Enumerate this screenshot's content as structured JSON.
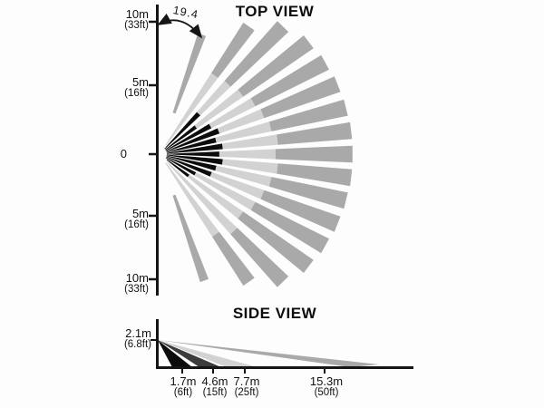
{
  "top_view": {
    "title": "TOP VIEW",
    "angle_label": "19.4",
    "axis_labels": [
      {
        "primary": "10m",
        "secondary": "(33ft)"
      },
      {
        "primary": "5m",
        "secondary": "(16ft)"
      },
      {
        "primary": "0",
        "secondary": ""
      },
      {
        "primary": "5m",
        "secondary": "(16ft)"
      },
      {
        "primary": "10m",
        "secondary": "(33ft)"
      }
    ],
    "beams": [
      {
        "angle": 70.5,
        "half_width": 1.9,
        "segments": [
          [
            48,
            140,
            "gray"
          ]
        ]
      },
      {
        "angle": 55,
        "half_width": 2.5,
        "segments": [
          [
            12,
            106,
            "light"
          ],
          [
            106,
            172,
            "gray"
          ]
        ]
      },
      {
        "angle": 46,
        "half_width": 2.5,
        "segments": [
          [
            8,
            62,
            "black"
          ],
          [
            62,
            108,
            "light"
          ],
          [
            108,
            196,
            "gray"
          ]
        ]
      },
      {
        "angle": 37,
        "half_width": 2.5,
        "segments": [
          [
            8,
            50,
            "black"
          ],
          [
            50,
            112,
            "light"
          ],
          [
            112,
            206,
            "gray"
          ]
        ]
      },
      {
        "angle": 29,
        "half_width": 2.5,
        "segments": [
          [
            8,
            64,
            "black"
          ],
          [
            64,
            118,
            "light"
          ],
          [
            118,
            209,
            "gray"
          ]
        ]
      },
      {
        "angle": 21.5,
        "half_width": 2.5,
        "segments": [
          [
            8,
            70,
            "black"
          ],
          [
            70,
            122,
            "light"
          ],
          [
            122,
            211,
            "gray"
          ]
        ]
      },
      {
        "angle": 14,
        "half_width": 2.5,
        "segments": [
          [
            8,
            64,
            "black"
          ],
          [
            64,
            126,
            "light"
          ],
          [
            126,
            212,
            "gray"
          ]
        ]
      },
      {
        "angle": 7,
        "half_width": 2.5,
        "segments": [
          [
            8,
            70,
            "black"
          ],
          [
            70,
            131,
            "light"
          ],
          [
            131,
            213,
            "gray"
          ]
        ]
      },
      {
        "angle": 0,
        "half_width": 2.5,
        "segments": [
          [
            8,
            66,
            "black"
          ],
          [
            66,
            128,
            "light"
          ],
          [
            128,
            213,
            "gray"
          ]
        ]
      },
      {
        "angle": -7,
        "half_width": 2.5,
        "segments": [
          [
            8,
            70,
            "black"
          ],
          [
            70,
            131,
            "light"
          ],
          [
            131,
            213,
            "gray"
          ]
        ]
      },
      {
        "angle": -14,
        "half_width": 2.5,
        "segments": [
          [
            8,
            64,
            "black"
          ],
          [
            64,
            126,
            "light"
          ],
          [
            126,
            212,
            "gray"
          ]
        ]
      },
      {
        "angle": -21.5,
        "half_width": 2.5,
        "segments": [
          [
            8,
            61,
            "black"
          ],
          [
            61,
            122,
            "light"
          ],
          [
            122,
            211,
            "gray"
          ]
        ]
      },
      {
        "angle": -29,
        "half_width": 2.5,
        "segments": [
          [
            8,
            45,
            "black"
          ],
          [
            45,
            118,
            "light"
          ],
          [
            118,
            209,
            "gray"
          ]
        ]
      },
      {
        "angle": -37,
        "half_width": 2.5,
        "segments": [
          [
            10,
            40,
            "black"
          ],
          [
            40,
            112,
            "light"
          ],
          [
            112,
            206,
            "gray"
          ]
        ]
      },
      {
        "angle": -46,
        "half_width": 2.5,
        "segments": [
          [
            12,
            118,
            "light"
          ],
          [
            118,
            196,
            "gray"
          ]
        ]
      },
      {
        "angle": -55,
        "half_width": 2.5,
        "segments": [
          [
            12,
            108,
            "light"
          ],
          [
            108,
            172,
            "gray"
          ]
        ]
      },
      {
        "angle": -70.5,
        "half_width": 1.9,
        "segments": [
          [
            48,
            148,
            "gray"
          ]
        ]
      }
    ]
  },
  "side_view": {
    "title": "SIDE VIEW",
    "height_label": {
      "primary": "2.1m",
      "secondary": "(6.8ft)"
    },
    "distance_labels": [
      {
        "primary": "1.7m",
        "secondary": "(6ft)"
      },
      {
        "primary": "4.6m",
        "secondary": "(15ft)"
      },
      {
        "primary": "7.7m",
        "secondary": "(25ft)"
      },
      {
        "primary": "15.3m",
        "secondary": "(50ft)"
      }
    ],
    "beams": [
      {
        "shade": "black",
        "points": [
          [
            174,
            375
          ],
          [
            190,
            405
          ],
          [
            212,
            405
          ]
        ]
      },
      {
        "shade": "dark",
        "points": [
          [
            174,
            375
          ],
          [
            220,
            405
          ],
          [
            244,
            405
          ]
        ]
      },
      {
        "shade": "light",
        "points": [
          [
            174,
            375
          ],
          [
            250,
            405
          ],
          [
            284,
            405
          ]
        ]
      },
      {
        "shade": "gray",
        "points": [
          [
            174,
            375
          ],
          [
            386,
            405
          ],
          [
            418,
            402
          ]
        ]
      }
    ]
  },
  "colors": {
    "black": "#0c0c0c",
    "dark": "#3c3c3c",
    "light": "#d2d2d2",
    "gray": "#a9a9a9",
    "axis": "#151515"
  }
}
